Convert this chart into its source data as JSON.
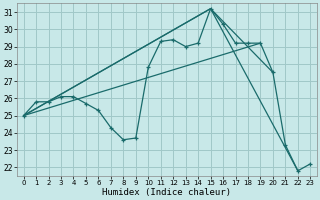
{
  "title": "",
  "xlabel": "Humidex (Indice chaleur)",
  "ylabel": "",
  "bg_color": "#c8e8e8",
  "grid_color": "#a0c8c8",
  "line_color": "#1a6b6b",
  "xlim": [
    -0.5,
    23.5
  ],
  "ylim": [
    21.5,
    31.5
  ],
  "xticks": [
    0,
    1,
    2,
    3,
    4,
    5,
    6,
    7,
    8,
    9,
    10,
    11,
    12,
    13,
    14,
    15,
    16,
    17,
    18,
    19,
    20,
    21,
    22,
    23
  ],
  "yticks": [
    22,
    23,
    24,
    25,
    26,
    27,
    28,
    29,
    30,
    31
  ],
  "series_zigzag": {
    "x": [
      0,
      1,
      2,
      3,
      4,
      5,
      6,
      7,
      8,
      9,
      10,
      11,
      12,
      13,
      14,
      15,
      16,
      17,
      18,
      19,
      20,
      21,
      22,
      23
    ],
    "y": [
      25.0,
      25.8,
      25.8,
      26.1,
      26.1,
      25.7,
      25.3,
      24.3,
      23.6,
      23.7,
      27.8,
      29.3,
      29.4,
      29.0,
      29.2,
      31.2,
      30.3,
      29.2,
      29.2,
      29.2,
      27.5,
      23.3,
      21.8,
      22.2
    ]
  },
  "series_straight1": {
    "x": [
      0,
      15,
      20
    ],
    "y": [
      25.0,
      31.2,
      27.5
    ]
  },
  "series_straight2": {
    "x": [
      0,
      15,
      22
    ],
    "y": [
      25.0,
      31.2,
      21.8
    ]
  },
  "series_straight3": {
    "x": [
      0,
      19
    ],
    "y": [
      25.0,
      29.2
    ]
  }
}
